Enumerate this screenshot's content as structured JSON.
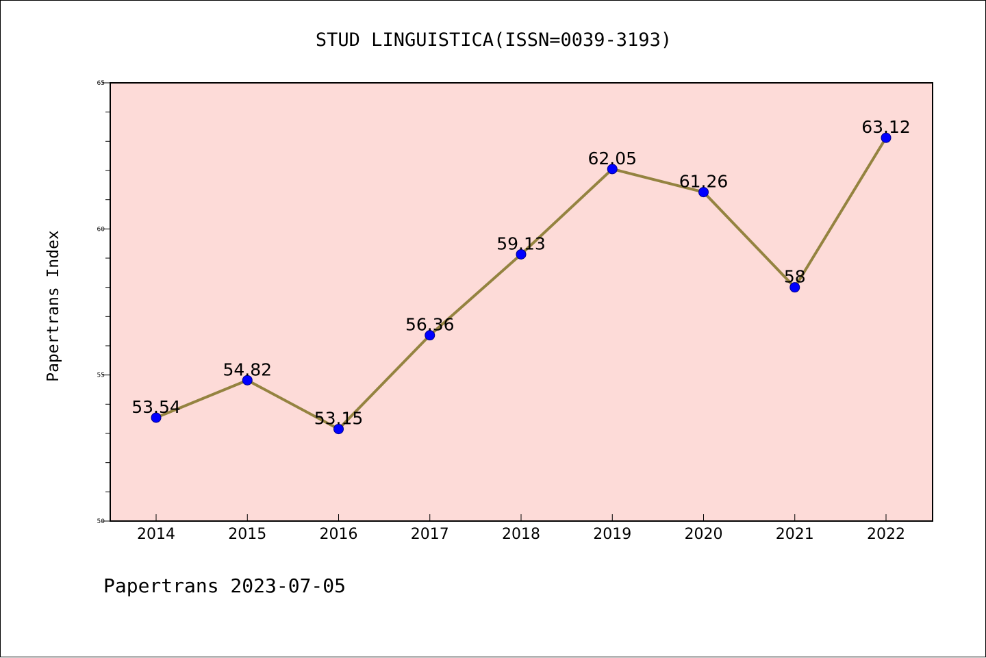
{
  "chart_data": {
    "type": "line",
    "title": "STUD LINGUISTICA(ISSN=0039-3193)",
    "xlabel": "",
    "ylabel": "Papertrans Index",
    "footer": "Papertrans 2023-07-05",
    "categories": [
      "2014",
      "2015",
      "2016",
      "2017",
      "2018",
      "2019",
      "2020",
      "2021",
      "2022"
    ],
    "series": [
      {
        "values": [
          53.54,
          54.82,
          53.15,
          56.36,
          59.13,
          62.05,
          61.26,
          58,
          63.12
        ],
        "labels": [
          "53.54",
          "54.82",
          "53.15",
          "56.36",
          "59.13",
          "62.05",
          "61.26",
          "58",
          "63.12"
        ]
      }
    ],
    "ylim": [
      50,
      65
    ],
    "yticks": [
      "50",
      "55",
      "60",
      "65"
    ],
    "grid": false,
    "legend": "none",
    "colors": {
      "plot_background": "#fddbd8",
      "line": "#948340",
      "marker": "#0000ff",
      "axes": "#000000"
    }
  }
}
